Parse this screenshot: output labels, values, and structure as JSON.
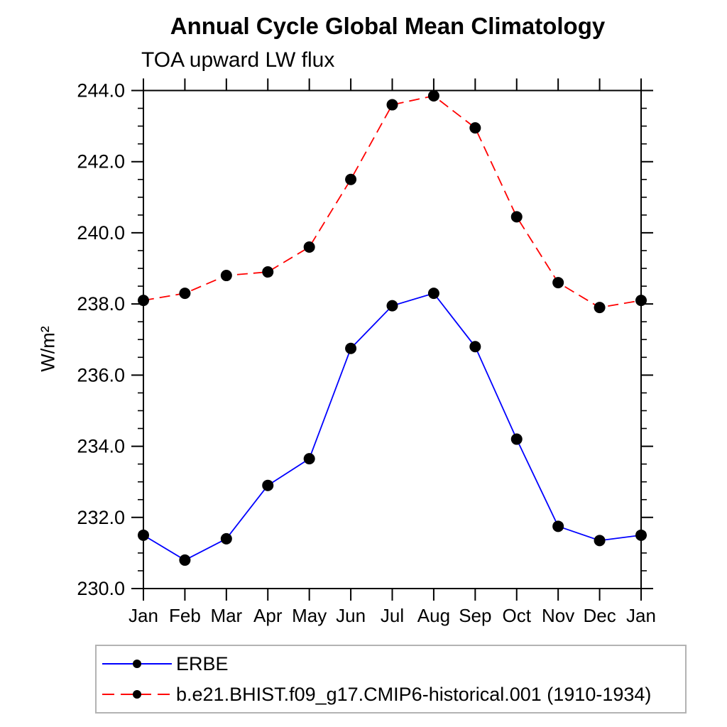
{
  "chart_data": {
    "type": "line",
    "title": "Annual Cycle Global Mean Climatology",
    "subtitle": "TOA upward LW flux",
    "ylabel": "W/m²",
    "xlabel": "",
    "categories": [
      "Jan",
      "Feb",
      "Mar",
      "Apr",
      "May",
      "Jun",
      "Jul",
      "Aug",
      "Sep",
      "Oct",
      "Nov",
      "Dec",
      "Jan"
    ],
    "series": [
      {
        "name": "ERBE",
        "color": "#0000ff",
        "line_style": "solid",
        "marker": "filled-circle",
        "marker_color": "#000000",
        "values": [
          231.5,
          230.8,
          231.4,
          232.9,
          233.65,
          236.75,
          237.95,
          238.3,
          236.8,
          234.2,
          231.75,
          231.35,
          231.5
        ]
      },
      {
        "name": "b.e21.BHIST.f09_g17.CMIP6-historical.001 (1910-1934)",
        "color": "#ff0000",
        "line_style": "dashed",
        "marker": "filled-circle",
        "marker_color": "#000000",
        "values": [
          238.1,
          238.3,
          238.8,
          238.9,
          239.6,
          241.5,
          243.6,
          243.85,
          242.95,
          240.45,
          238.6,
          237.9,
          238.1
        ]
      }
    ],
    "ylim": [
      230.0,
      244.0
    ],
    "ytick_major_interval": 2.0,
    "ytick_minor_interval": 0.5,
    "ytick_labels": [
      "230.0",
      "232.0",
      "234.0",
      "236.0",
      "238.0",
      "240.0",
      "242.0",
      "244.0"
    ],
    "grid": false,
    "legend_position": "bottom-left",
    "axis_color": "#000000",
    "text_color": "#000000"
  }
}
